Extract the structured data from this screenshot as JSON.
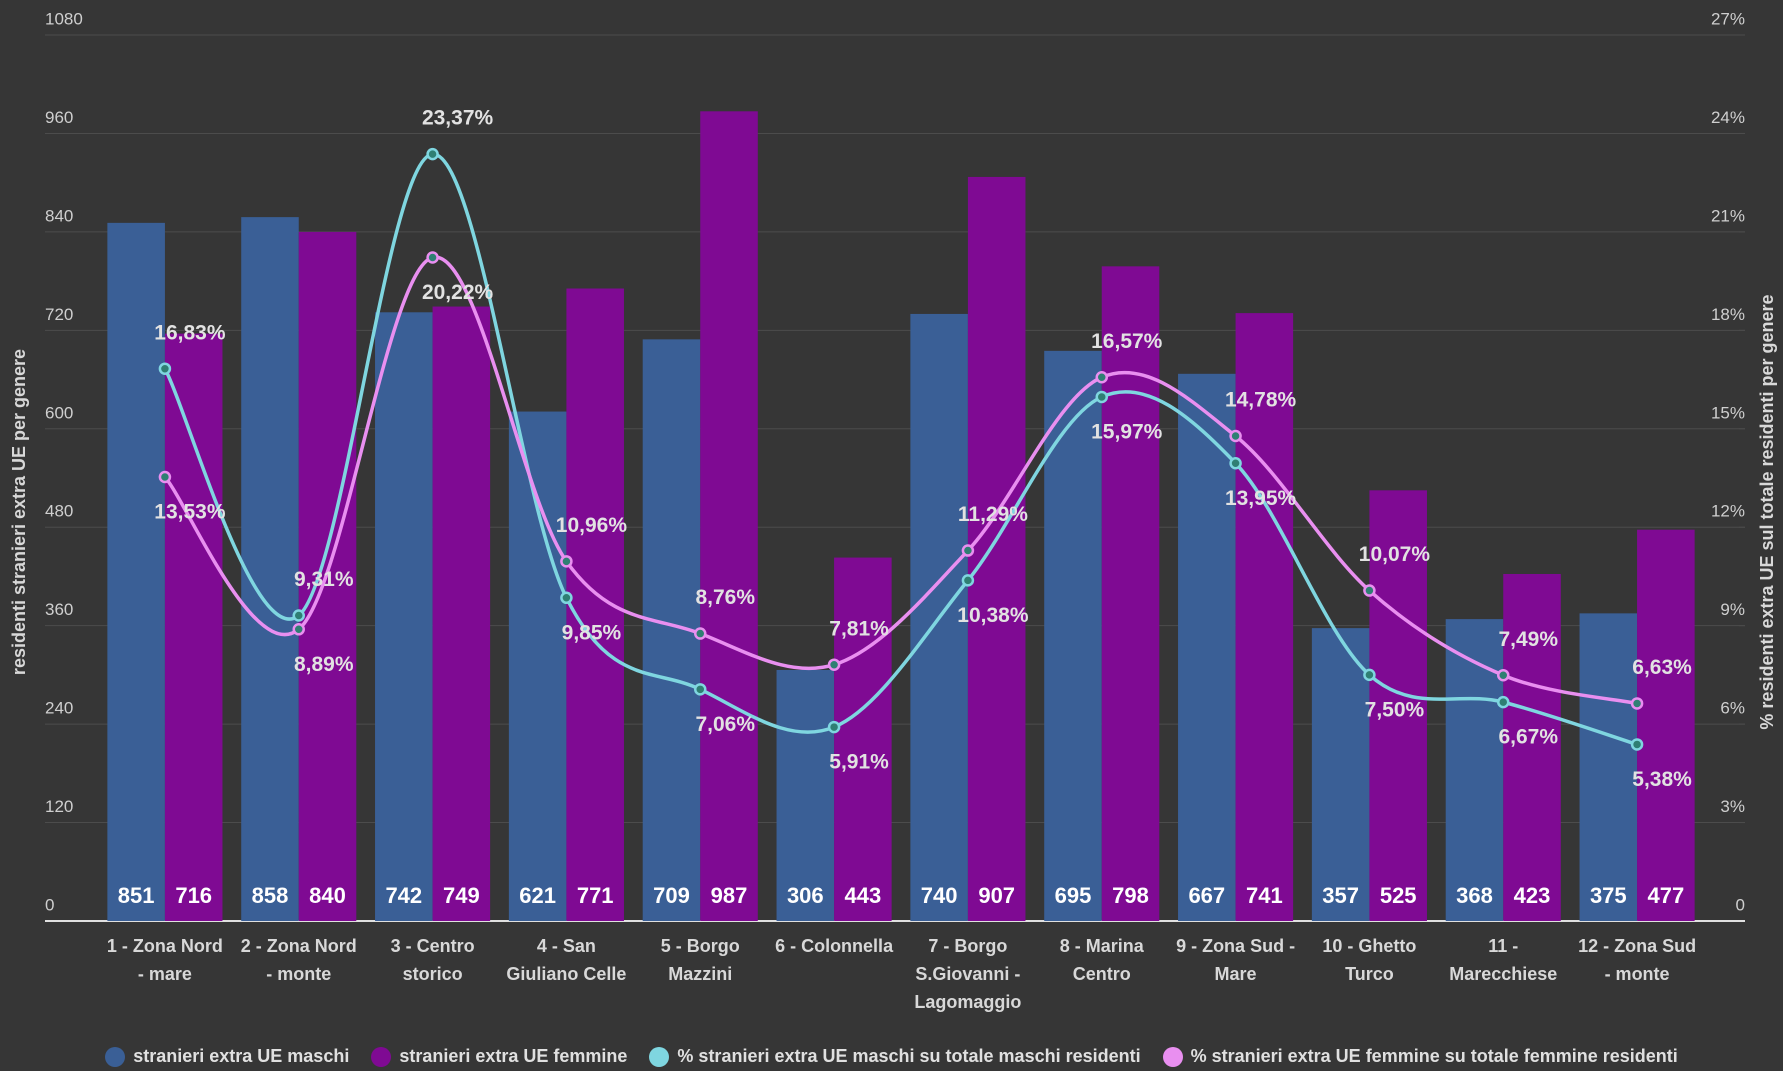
{
  "chart_data": {
    "type": "bar-line",
    "ylabel": "residenti stranieri extra UE per genere",
    "y2label": "% residenti extra UE sul totale residenti per genere",
    "categories": [
      "1 - Zona Nord - mare",
      "2 - Zona Nord - monte",
      "3 - Centro storico",
      "4 - San Giuliano Celle",
      "5 - Borgo Mazzini",
      "6 - Colonnella",
      "7 - Borgo S.Giovanni - Lagomaggio",
      "8 - Marina Centro",
      "9 - Zona Sud - Mare",
      "10 - Ghetto Turco",
      "11 - Marecchiese",
      "12 - Zona Sud - monte"
    ],
    "series": [
      {
        "name": "stranieri extra UE maschi",
        "color": "#3a5f96",
        "kind": "bar",
        "values": [
          851,
          858,
          742,
          621,
          709,
          306,
          740,
          695,
          667,
          357,
          368,
          375
        ]
      },
      {
        "name": "stranieri extra UE femmine",
        "color": "#7f0a93",
        "kind": "bar",
        "values": [
          716,
          840,
          749,
          771,
          987,
          443,
          907,
          798,
          741,
          525,
          423,
          477
        ]
      },
      {
        "name": "% stranieri extra UE maschi su totale maschi residenti",
        "color": "#7fd6e0",
        "kind": "line",
        "axis": "y2",
        "values": [
          16.83,
          9.31,
          23.37,
          9.85,
          7.06,
          5.91,
          10.38,
          15.97,
          13.95,
          7.5,
          6.67,
          5.38
        ],
        "value_labels": [
          "16,83%",
          "9,31%",
          "23,37%",
          "9,85%",
          "7,06%",
          "5,91%",
          "10,38%",
          "15,97%",
          "13,95%",
          "7,50%",
          "6,67%",
          "5,38%"
        ]
      },
      {
        "name": "% stranieri extra UE femmine su totale femmine residenti",
        "color": "#e98ff0",
        "kind": "line",
        "axis": "y2",
        "values": [
          13.53,
          8.89,
          20.22,
          10.96,
          8.76,
          7.81,
          11.29,
          16.57,
          14.78,
          10.07,
          7.49,
          6.63
        ],
        "value_labels": [
          "13,53%",
          "8,89%",
          "20,22%",
          "10,96%",
          "8,76%",
          "7,81%",
          "11,29%",
          "16,57%",
          "14,78%",
          "10,07%",
          "7,49%",
          "6,63%"
        ]
      }
    ],
    "ylim": [
      0,
      1080
    ],
    "yticks": [
      0,
      120,
      240,
      360,
      480,
      600,
      720,
      840,
      960,
      1080
    ],
    "y2lim": [
      0,
      27
    ],
    "y2ticks": [
      0,
      {
        "value": 3,
        "label": "3%"
      },
      {
        "value": 6,
        "label": "6%"
      },
      {
        "value": 9,
        "label": "9%"
      },
      {
        "value": 12,
        "label": "12%"
      },
      {
        "value": 15,
        "label": "15%"
      },
      {
        "value": 18,
        "label": "18%"
      },
      {
        "value": 21,
        "label": "21%"
      },
      {
        "value": 24,
        "label": "24%"
      },
      {
        "value": 27,
        "label": "27%"
      }
    ],
    "grid": true
  }
}
